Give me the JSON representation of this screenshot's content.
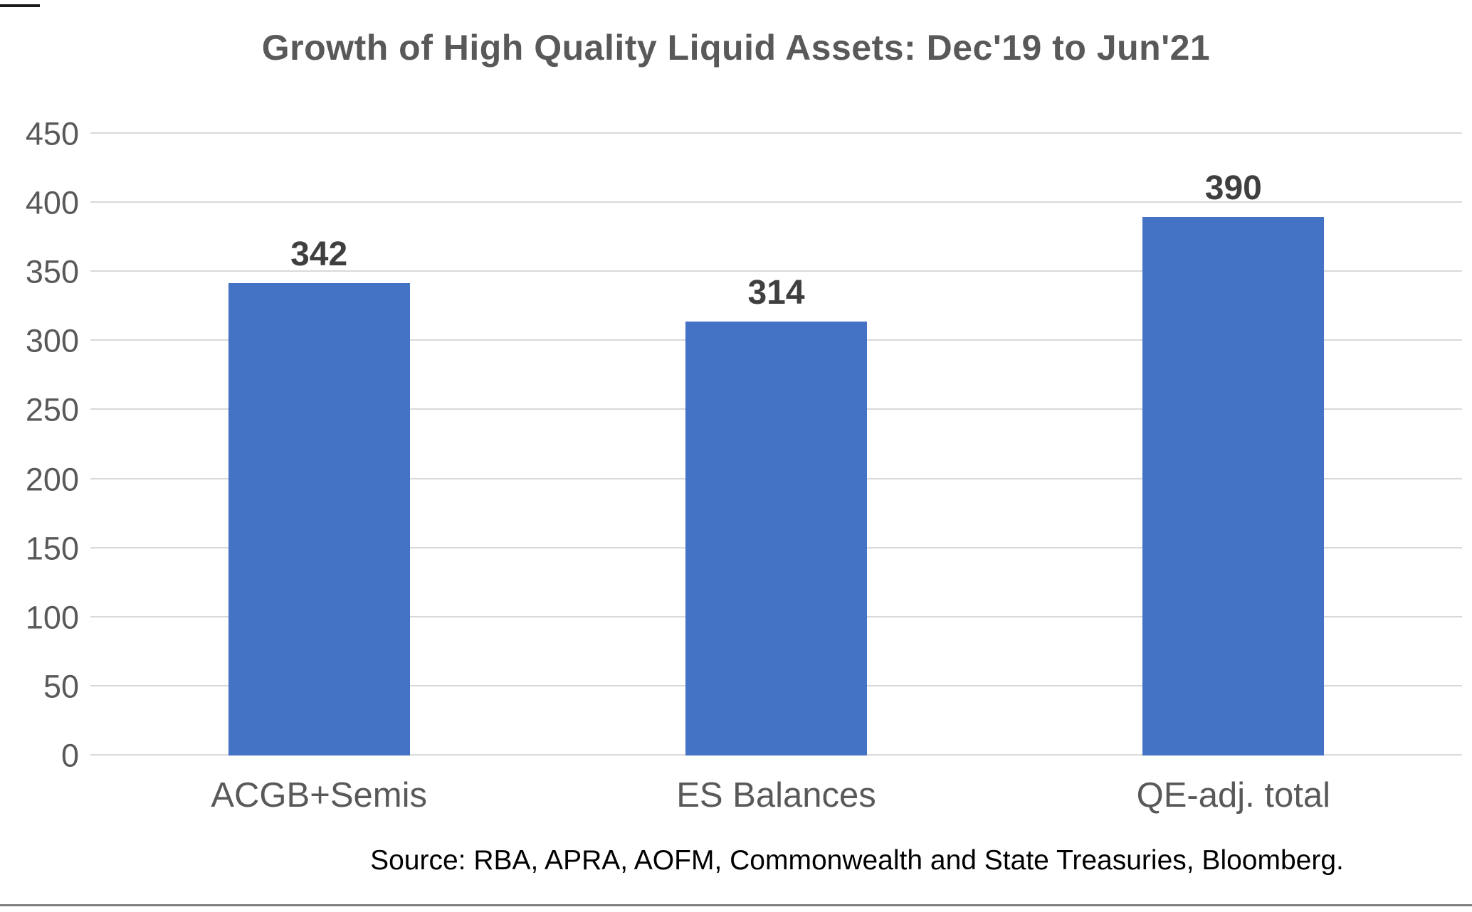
{
  "chart_data": {
    "type": "bar",
    "title": "Growth of High Quality Liquid Assets: Dec'19 to Jun'21",
    "categories": [
      "ACGB+Semis",
      "ES Balances",
      "QE-adj. total"
    ],
    "values": [
      342,
      314,
      390
    ],
    "data_labels": [
      "342",
      "314",
      "390"
    ],
    "xlabel": "",
    "ylabel": "",
    "ylim": [
      0,
      450
    ],
    "yticks": [
      0,
      50,
      100,
      150,
      200,
      250,
      300,
      350,
      400,
      450
    ],
    "grid": true,
    "legend": "none",
    "bar_color": "#4472c4",
    "gridline_color": "#d9d9d9",
    "title_color": "#595959",
    "tick_label_color": "#595959",
    "value_label_color": "#3f3f3f",
    "source": "Source: RBA, APRA, AOFM, Commonwealth and State Treasuries, Bloomberg."
  }
}
